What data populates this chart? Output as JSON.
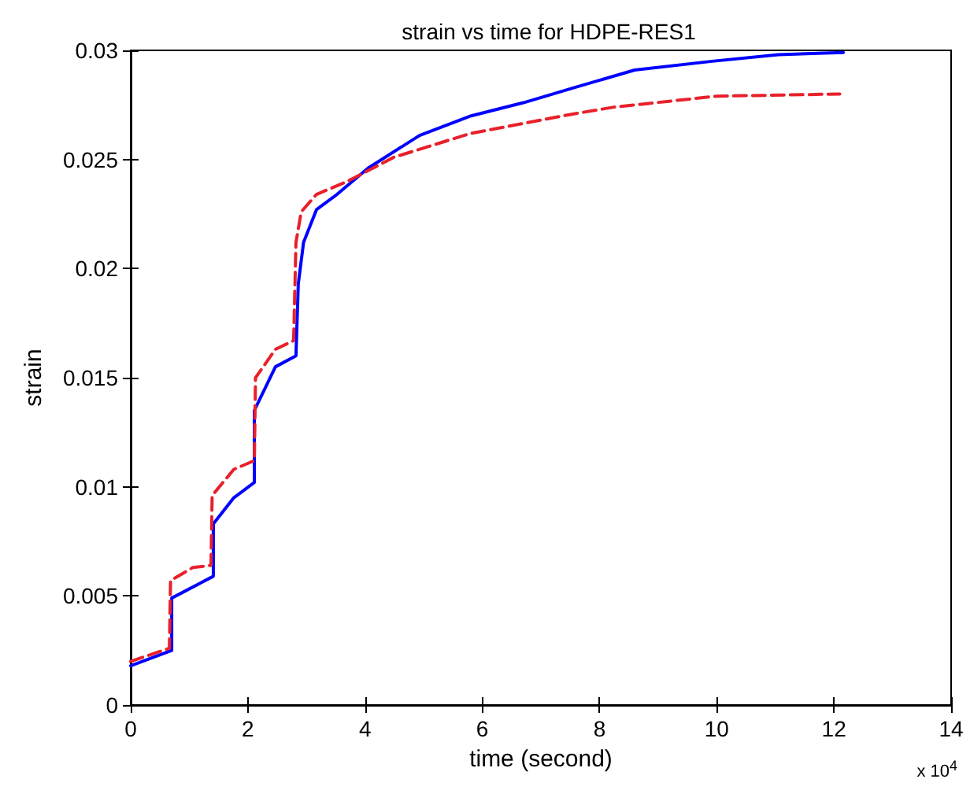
{
  "chart_data": {
    "type": "line",
    "title": "strain vs time for HDPE-RES1",
    "xlabel": "time (second)",
    "ylabel": "strain",
    "annotations": [
      "x 10$^{4}$"
    ],
    "xlim": [
      0,
      14
    ],
    "xticks": [
      0,
      2,
      4,
      6,
      8,
      10,
      12,
      14
    ],
    "ylim": [
      0,
      0.03
    ],
    "yticks": [
      0,
      0.005,
      0.01,
      0.015,
      0.02,
      0.025,
      0.03
    ],
    "grid": false,
    "series": [
      {
        "color": "#0000ff",
        "line_style": "solid",
        "x": [
          0,
          0.7,
          0.7,
          1.41,
          1.41,
          1.76,
          2.11,
          2.11,
          2.47,
          2.82,
          2.86,
          2.95,
          3.17,
          3.52,
          4.05,
          4.93,
          5.81,
          6.7,
          7.58,
          8.6,
          9.92,
          11.05,
          12.16
        ],
        "values": [
          0.0018,
          0.0025,
          0.0049,
          0.0059,
          0.0083,
          0.0095,
          0.0102,
          0.0135,
          0.0155,
          0.016,
          0.0193,
          0.0212,
          0.0227,
          0.0234,
          0.0246,
          0.0261,
          0.027,
          0.0276,
          0.0283,
          0.0291,
          0.0295,
          0.0298,
          0.0299
        ]
      },
      {
        "color": "#e8202a",
        "line_style": "dashed",
        "x": [
          0,
          0.66,
          0.68,
          1.06,
          1.37,
          1.39,
          1.76,
          2.11,
          2.13,
          2.47,
          2.78,
          2.82,
          2.91,
          3.17,
          3.7,
          4.49,
          5.81,
          6.6,
          7.58,
          8.25,
          10,
          12.1
        ],
        "values": [
          0.002,
          0.0026,
          0.0057,
          0.0063,
          0.0064,
          0.0096,
          0.0108,
          0.0112,
          0.015,
          0.0163,
          0.0167,
          0.0212,
          0.0226,
          0.0234,
          0.024,
          0.0251,
          0.0262,
          0.0266,
          0.0271,
          0.0274,
          0.0279,
          0.028
        ]
      }
    ]
  }
}
